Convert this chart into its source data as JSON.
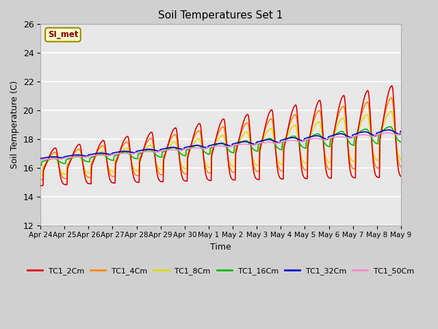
{
  "title": "Soil Temperatures Set 1",
  "xlabel": "Time",
  "ylabel": "Soil Temperature (C)",
  "ylim": [
    12,
    26
  ],
  "yticks": [
    12,
    14,
    16,
    18,
    20,
    22,
    24,
    26
  ],
  "fig_bg": "#d0d0d0",
  "plot_bg": "#e8e8e8",
  "annotation_text": "SI_met",
  "annotation_bg": "#ffffcc",
  "annotation_border": "#998800",
  "series_colors": {
    "TC1_2Cm": "#dd0000",
    "TC1_4Cm": "#ff8800",
    "TC1_8Cm": "#dddd00",
    "TC1_16Cm": "#00bb00",
    "TC1_32Cm": "#0000cc",
    "TC1_50Cm": "#ff88cc"
  },
  "x_tick_labels": [
    "Apr 24",
    "Apr 25",
    "Apr 26",
    "Apr 27",
    "Apr 28",
    "Apr 29",
    "Apr 30",
    "May 1",
    "May 2",
    "May 3",
    "May 4",
    "May 5",
    "May 6",
    "May 7",
    "May 8",
    "May 9"
  ],
  "days": 15,
  "pts_per_day": 48
}
